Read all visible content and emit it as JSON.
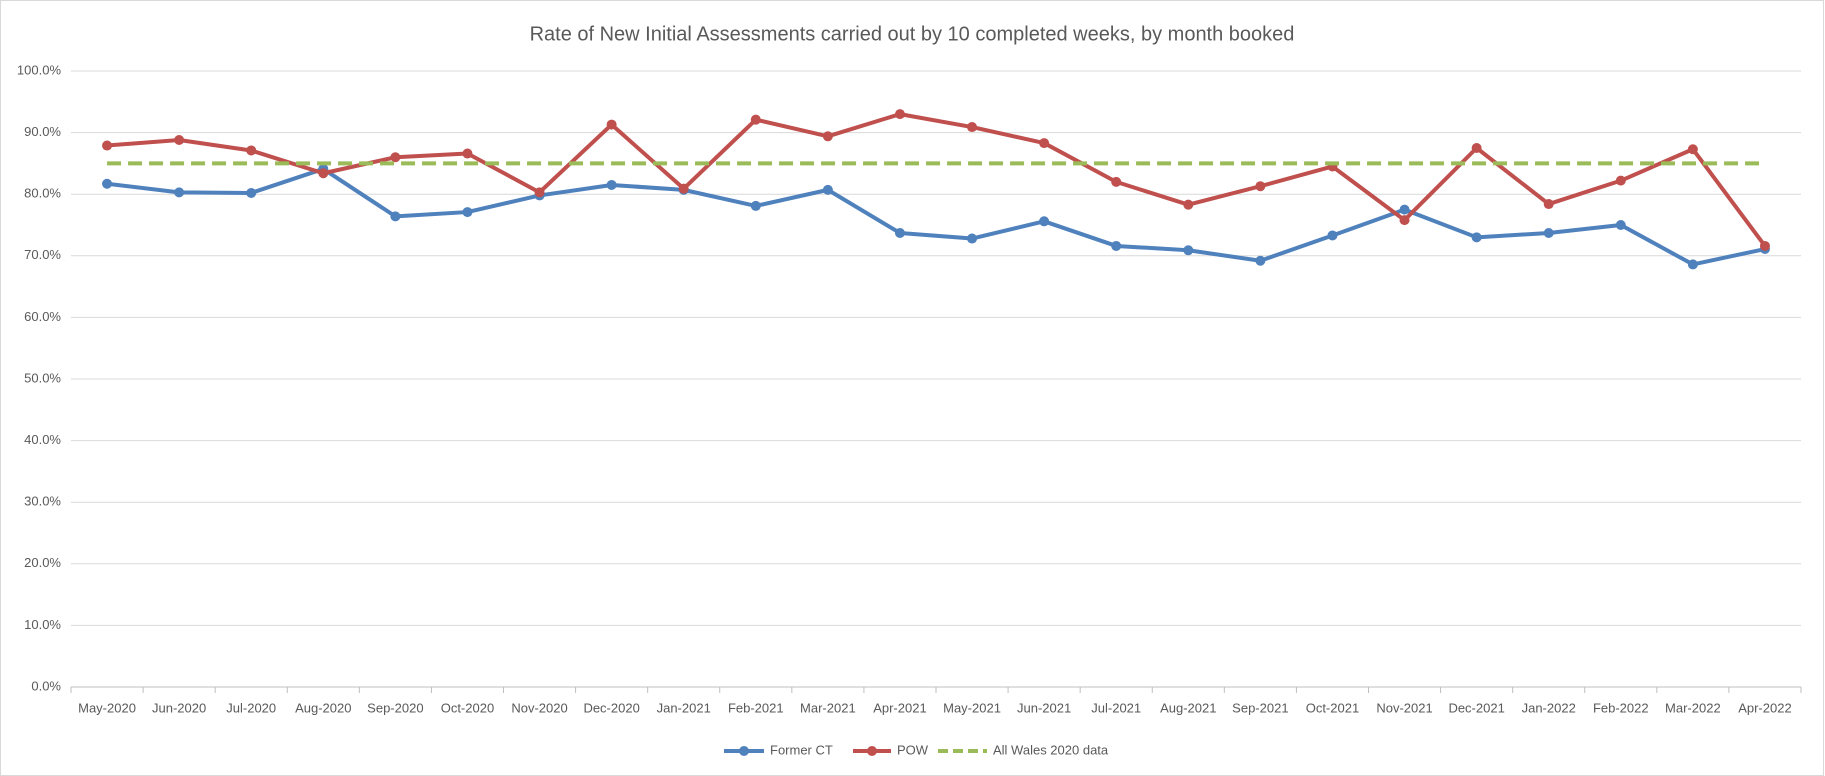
{
  "chart_data": {
    "type": "line",
    "title": "Rate of New Initial Assessments carried out by 10 completed weeks, by month booked",
    "categories": [
      "May-2020",
      "Jun-2020",
      "Jul-2020",
      "Aug-2020",
      "Sep-2020",
      "Oct-2020",
      "Nov-2020",
      "Dec-2020",
      "Jan-2021",
      "Feb-2021",
      "Mar-2021",
      "Apr-2021",
      "May-2021",
      "Jun-2021",
      "Jul-2021",
      "Aug-2021",
      "Sep-2021",
      "Oct-2021",
      "Nov-2021",
      "Dec-2021",
      "Jan-2022",
      "Feb-2022",
      "Mar-2022",
      "Apr-2022"
    ],
    "series": [
      {
        "name": "Former CT",
        "color": "#4f81bd",
        "markers": true,
        "line_style": "solid",
        "values": [
          81.7,
          80.3,
          80.2,
          84.1,
          76.4,
          77.1,
          79.8,
          81.5,
          80.7,
          78.1,
          80.7,
          73.7,
          72.8,
          75.6,
          71.6,
          70.9,
          69.2,
          73.3,
          77.5,
          73.0,
          73.7,
          75.0,
          68.6,
          71.1
        ]
      },
      {
        "name": "POW",
        "color": "#c0504d",
        "markers": true,
        "line_style": "solid",
        "values": [
          87.9,
          88.8,
          87.1,
          83.4,
          86.0,
          86.6,
          80.3,
          91.3,
          80.9,
          92.1,
          89.4,
          93.0,
          90.9,
          88.3,
          82.0,
          78.3,
          81.3,
          84.5,
          75.8,
          87.5,
          78.4,
          82.2,
          87.3,
          71.6
        ]
      },
      {
        "name": "All Wales 2020 data",
        "color": "#9bbb59",
        "markers": false,
        "line_style": "dashed",
        "values": [
          85,
          85,
          85,
          85,
          85,
          85,
          85,
          85,
          85,
          85,
          85,
          85,
          85,
          85,
          85,
          85,
          85,
          85,
          85,
          85,
          85,
          85,
          85,
          85
        ]
      }
    ],
    "ylim": [
      0,
      100
    ],
    "yticks": [
      {
        "value": 0,
        "label": "0.0%"
      },
      {
        "value": 10,
        "label": "10.0%"
      },
      {
        "value": 20,
        "label": "20.0%"
      },
      {
        "value": 30,
        "label": "30.0%"
      },
      {
        "value": 40,
        "label": "40.0%"
      },
      {
        "value": 50,
        "label": "50.0%"
      },
      {
        "value": 60,
        "label": "60.0%"
      },
      {
        "value": 70,
        "label": "70.0%"
      },
      {
        "value": 80,
        "label": "80.0%"
      },
      {
        "value": 90,
        "label": "90.0%"
      },
      {
        "value": 100,
        "label": "100.0%"
      }
    ],
    "grid": true,
    "legend": "bottom"
  }
}
